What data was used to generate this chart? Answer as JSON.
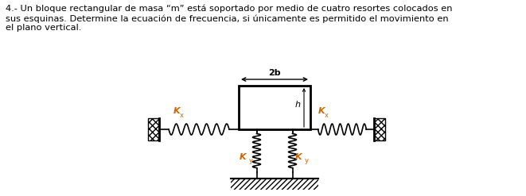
{
  "text_content": "4.- Un bloque rectangular de masa “m” está soportado por medio de cuatro resortes colocados en\nsus esquinas. Determine la ecuación de frecuencia, si únicamente es permitido el movimiento en\nel plano vertical.",
  "text_color": "#000000",
  "orange_color": "#cc6600",
  "diagram_color": "#000000",
  "bg_color": "#ffffff",
  "label_2b": "2b",
  "label_h": "h",
  "label_kx": "K",
  "label_ky": "K",
  "sub_x": "x",
  "sub_y": "y"
}
